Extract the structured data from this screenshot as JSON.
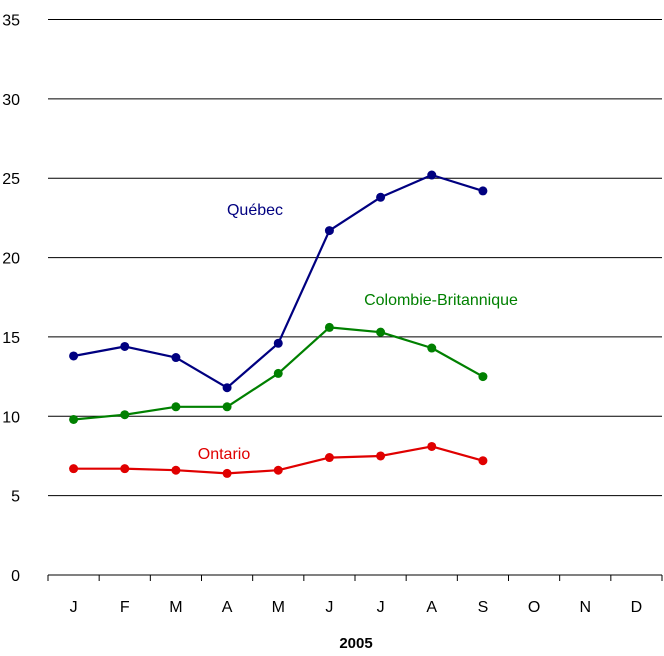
{
  "chart_data": {
    "type": "line",
    "xlabel": "2005",
    "ylabel": "",
    "ylim": [
      0,
      35
    ],
    "yticks": [
      0,
      5,
      10,
      15,
      20,
      25,
      30,
      35
    ],
    "categories": [
      "J",
      "F",
      "M",
      "A",
      "M",
      "J",
      "J",
      "A",
      "S",
      "O",
      "N",
      "D"
    ],
    "grid": "horizontal",
    "legend": "inline labels",
    "series": [
      {
        "name": "Québec",
        "color": "#000080",
        "values": [
          13.8,
          14.4,
          13.7,
          11.8,
          14.6,
          21.7,
          23.8,
          25.2,
          24.2,
          null,
          null,
          null
        ]
      },
      {
        "name": "Colombie-Britannique",
        "color": "#008000",
        "values": [
          9.8,
          10.1,
          10.6,
          10.6,
          12.7,
          15.6,
          15.3,
          14.3,
          12.5,
          null,
          null,
          null
        ]
      },
      {
        "name": "Ontario",
        "color": "#e00000",
        "values": [
          6.7,
          6.7,
          6.6,
          6.4,
          6.6,
          7.4,
          7.5,
          8.1,
          7.2,
          null,
          null,
          null
        ]
      }
    ]
  }
}
